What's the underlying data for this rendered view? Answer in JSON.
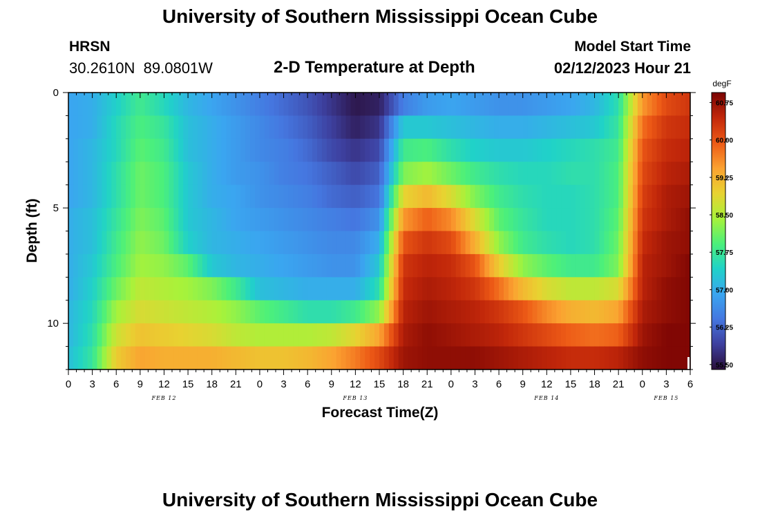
{
  "header": {
    "title": "University of Southern Mississippi Ocean Cube",
    "station": "HRSN",
    "coordinates": "30.2610N  89.0801W",
    "subtitle": "2-D Temperature at Depth",
    "model_start_label": "Model Start Time",
    "model_start_value": "02/12/2023 Hour 21"
  },
  "footer": {
    "title": "University of Southern Mississippi Ocean Cube"
  },
  "chart_data": {
    "type": "heatmap",
    "title": "2-D Temperature at Depth",
    "xlabel": "Forecast Time(Z)",
    "ylabel": "Depth (ft)",
    "units_label": "degF",
    "x_range_hours": [
      0,
      78
    ],
    "y_range_ft": [
      0,
      12
    ],
    "y_inverted": true,
    "y_ticks": [
      "0",
      "5",
      "10"
    ],
    "x_tick_labels": [
      "0",
      "3",
      "6",
      "9",
      "12",
      "15",
      "18",
      "21",
      "0",
      "3",
      "6",
      "9",
      "12",
      "15",
      "18",
      "21",
      "0",
      "3",
      "6",
      "9",
      "12",
      "15",
      "18",
      "21",
      "0",
      "3",
      "6"
    ],
    "date_labels": [
      {
        "text": "FEB 12",
        "hour": 12
      },
      {
        "text": "FEB 13",
        "hour": 36
      },
      {
        "text": "FEB 14",
        "hour": 60
      },
      {
        "text": "FEB 15",
        "hour": 75
      }
    ],
    "colorbar": {
      "min": 55.4,
      "max": 60.95,
      "ticks": [
        "55.50",
        "56.25",
        "57.00",
        "57.75",
        "58.50",
        "59.25",
        "60.00",
        "60.75"
      ],
      "colors": [
        "#2a0e3a",
        "#3d3f9e",
        "#4577e0",
        "#3aa6f0",
        "#20d2c8",
        "#4cf07a",
        "#a8f23a",
        "#e8d231",
        "#fba231",
        "#ed5a16",
        "#c2270a",
        "#7a0403"
      ]
    },
    "depth_layers_ft": [
      0.5,
      1.5,
      2.5,
      3.5,
      4.5,
      5.5,
      6.5,
      7.5,
      8.5,
      9.5,
      10.5,
      11.5
    ],
    "time_hours": [
      0,
      3,
      6,
      9,
      12,
      15,
      18,
      21,
      24,
      27,
      30,
      33,
      36,
      39,
      42,
      45,
      48,
      51,
      54,
      57,
      60,
      63,
      66,
      69,
      72,
      75,
      78
    ],
    "values_degF": [
      [
        56.9,
        57.0,
        57.4,
        57.8,
        57.5,
        57.1,
        56.9,
        56.7,
        56.5,
        56.3,
        56.1,
        55.8,
        55.5,
        55.6,
        56.5,
        56.8,
        56.9,
        56.8,
        56.7,
        56.7,
        56.8,
        56.9,
        57.1,
        57.6,
        59.5,
        60.1,
        60.3
      ],
      [
        56.9,
        57.0,
        57.5,
        57.9,
        57.7,
        57.2,
        57.0,
        56.8,
        56.6,
        56.4,
        56.2,
        55.9,
        55.6,
        55.8,
        57.3,
        57.3,
        57.2,
        57.1,
        57.0,
        57.0,
        57.1,
        57.2,
        57.3,
        57.7,
        59.8,
        60.3,
        60.4
      ],
      [
        56.9,
        57.1,
        57.5,
        58.0,
        57.8,
        57.2,
        57.0,
        56.8,
        56.6,
        56.5,
        56.3,
        56.0,
        55.8,
        56.0,
        57.8,
        57.9,
        57.6,
        57.4,
        57.3,
        57.3,
        57.4,
        57.5,
        57.6,
        57.8,
        60.0,
        60.4,
        60.5
      ],
      [
        56.9,
        57.1,
        57.6,
        58.1,
        57.9,
        57.3,
        57.0,
        56.8,
        56.7,
        56.5,
        56.4,
        56.2,
        56.0,
        56.2,
        58.2,
        58.4,
        58.1,
        57.8,
        57.6,
        57.5,
        57.5,
        57.6,
        57.6,
        57.9,
        60.1,
        60.5,
        60.6
      ],
      [
        56.9,
        57.1,
        57.6,
        58.1,
        57.9,
        57.3,
        57.0,
        56.9,
        56.7,
        56.6,
        56.5,
        56.3,
        56.2,
        56.4,
        58.9,
        59.2,
        58.8,
        58.2,
        57.8,
        57.6,
        57.5,
        57.5,
        57.6,
        57.9,
        60.2,
        60.6,
        60.7
      ],
      [
        57.0,
        57.2,
        57.7,
        58.2,
        58.0,
        57.3,
        57.1,
        56.9,
        56.8,
        56.7,
        56.6,
        56.5,
        56.4,
        56.7,
        59.5,
        59.9,
        59.6,
        58.8,
        58.0,
        57.7,
        57.5,
        57.5,
        57.6,
        58.0,
        60.3,
        60.6,
        60.8
      ],
      [
        57.0,
        57.2,
        57.8,
        58.3,
        58.1,
        57.4,
        57.1,
        57.0,
        56.9,
        56.8,
        56.7,
        56.6,
        56.6,
        57.0,
        60.0,
        60.3,
        60.1,
        59.3,
        58.3,
        57.8,
        57.6,
        57.5,
        57.6,
        58.1,
        60.4,
        60.7,
        60.8
      ],
      [
        57.0,
        57.3,
        57.9,
        58.4,
        58.3,
        58.0,
        57.3,
        57.1,
        57.0,
        56.9,
        56.8,
        56.7,
        56.7,
        57.3,
        60.3,
        60.5,
        60.4,
        60.0,
        59.0,
        58.3,
        58.0,
        57.8,
        57.8,
        58.2,
        60.5,
        60.7,
        60.9
      ],
      [
        57.0,
        57.4,
        58.1,
        58.6,
        58.5,
        58.4,
        58.2,
        57.8,
        57.2,
        57.1,
        57.0,
        57.0,
        57.0,
        57.6,
        60.4,
        60.6,
        60.5,
        60.3,
        59.8,
        59.2,
        58.8,
        58.6,
        58.6,
        58.8,
        60.5,
        60.8,
        60.9
      ],
      [
        57.1,
        57.5,
        58.4,
        58.8,
        58.7,
        58.6,
        58.5,
        58.3,
        58.0,
        57.8,
        57.6,
        57.6,
        57.8,
        58.3,
        60.5,
        60.7,
        60.6,
        60.5,
        60.3,
        60.0,
        59.6,
        59.3,
        59.2,
        59.4,
        60.6,
        60.8,
        60.9
      ],
      [
        57.1,
        57.6,
        58.7,
        59.1,
        59.0,
        58.9,
        58.8,
        58.6,
        58.5,
        58.5,
        58.5,
        58.6,
        58.9,
        59.4,
        60.6,
        60.8,
        60.7,
        60.6,
        60.5,
        60.3,
        60.1,
        59.9,
        59.8,
        59.9,
        60.7,
        60.9,
        60.9
      ],
      [
        57.2,
        57.7,
        59.0,
        59.4,
        59.3,
        59.3,
        59.3,
        59.2,
        59.1,
        59.1,
        59.2,
        59.4,
        59.7,
        60.1,
        60.7,
        60.8,
        60.8,
        60.8,
        60.7,
        60.6,
        60.5,
        60.4,
        60.4,
        60.5,
        60.8,
        60.9,
        60.9
      ]
    ]
  }
}
